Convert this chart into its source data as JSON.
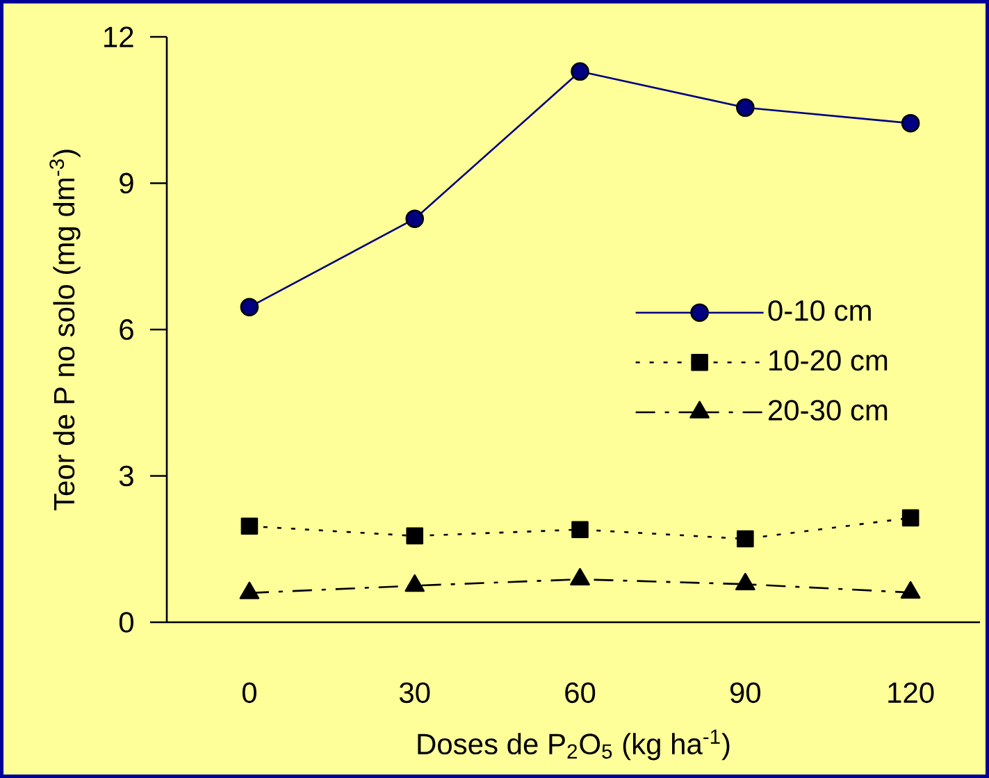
{
  "chart_data": {
    "type": "line",
    "xlabel": "Doses de P$_{2}$O$_{5}$ (kg ha$^{-1}$)",
    "ylabel": "Teor de P no solo (mg dm$^{-3}$)",
    "categories": [
      "0",
      "30",
      "60",
      "90",
      "120"
    ],
    "ylim": [
      0,
      12
    ],
    "yticks": [
      0,
      3,
      6,
      9,
      12
    ],
    "legend": "right",
    "series": [
      {
        "name": "0-10 cm",
        "color": "#000080",
        "marker": "circle",
        "line_style": "solid",
        "values": [
          6.46,
          8.27,
          11.29,
          10.55,
          10.23
        ]
      },
      {
        "name": "10-20 cm",
        "color": "#000000",
        "marker": "square",
        "line_style": "dotted",
        "values": [
          1.97,
          1.77,
          1.9,
          1.71,
          2.14
        ]
      },
      {
        "name": "20-30 cm",
        "color": "#000000",
        "marker": "triangle",
        "line_style": "dashed",
        "values": [
          0.6,
          0.75,
          0.88,
          0.78,
          0.61
        ]
      }
    ]
  }
}
